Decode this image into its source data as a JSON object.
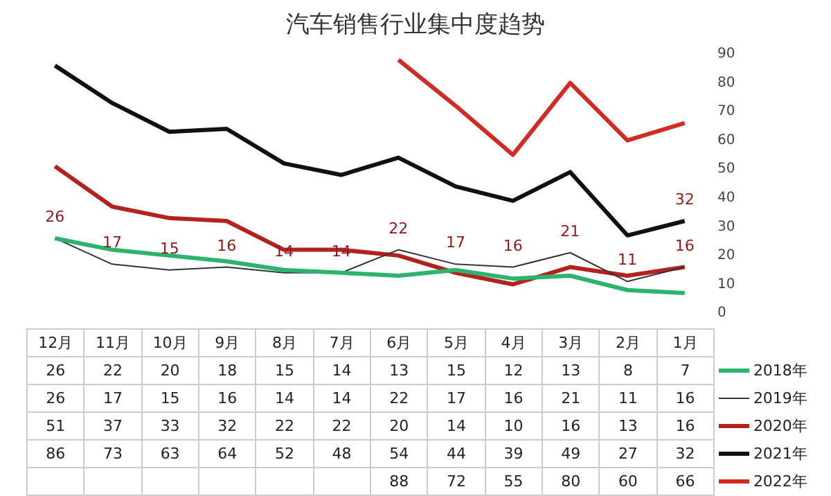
{
  "chart_data": {
    "type": "line",
    "title": "汽车销售行业集中度趋势",
    "categories": [
      "12月",
      "11月",
      "10月",
      "9月",
      "8月",
      "7月",
      "6月",
      "5月",
      "4月",
      "3月",
      "2月",
      "1月"
    ],
    "series": [
      {
        "name": "2018年",
        "color": "#2db36b",
        "values": [
          26,
          22,
          20,
          18,
          15,
          14,
          13,
          15,
          12,
          13,
          8,
          7
        ]
      },
      {
        "name": "2019年",
        "color": "#333333",
        "values": [
          26,
          17,
          15,
          16,
          14,
          14,
          22,
          17,
          16,
          21,
          11,
          16
        ]
      },
      {
        "name": "2020年",
        "color": "#b3221e",
        "values": [
          51,
          37,
          33,
          32,
          22,
          22,
          20,
          14,
          10,
          16,
          13,
          16
        ]
      },
      {
        "name": "2021年",
        "color": "#111111",
        "values": [
          86,
          73,
          63,
          64,
          52,
          48,
          54,
          44,
          39,
          49,
          27,
          32
        ]
      },
      {
        "name": "2022年",
        "color": "#d42a24",
        "values": [
          null,
          null,
          null,
          null,
          null,
          null,
          88,
          72,
          55,
          80,
          60,
          66
        ]
      }
    ],
    "annotations": [
      {
        "text": "26",
        "x": "12月",
        "y": 26
      },
      {
        "text": "17",
        "x": "11月",
        "y": 17
      },
      {
        "text": "15",
        "x": "10月",
        "y": 15
      },
      {
        "text": "16",
        "x": "9月",
        "y": 16
      },
      {
        "text": "14",
        "x": "8月",
        "y": 14
      },
      {
        "text": "14",
        "x": "7月",
        "y": 14
      },
      {
        "text": "22",
        "x": "6月",
        "y": 22
      },
      {
        "text": "17",
        "x": "5月",
        "y": 17
      },
      {
        "text": "16",
        "x": "4月",
        "y": 16
      },
      {
        "text": "21",
        "x": "3月",
        "y": 21
      },
      {
        "text": "11",
        "x": "2月",
        "y": 11
      },
      {
        "text": "16",
        "x": "1月",
        "y": 16
      },
      {
        "text": "32",
        "x": "1月",
        "y": 32
      }
    ],
    "ylim": [
      0,
      90
    ],
    "yticks": [
      0,
      10,
      20,
      30,
      40,
      50,
      60,
      70,
      80,
      90
    ],
    "grid": false,
    "legend": "bottom",
    "data_labels": true,
    "marker": "none",
    "line_style": "solid"
  }
}
